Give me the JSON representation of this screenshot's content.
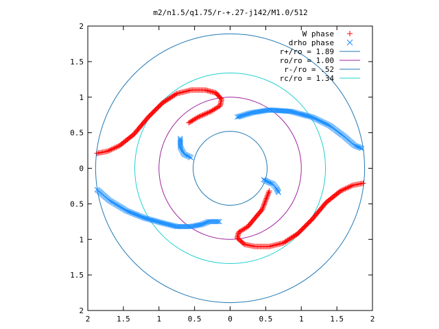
{
  "chart_data": {
    "type": "scatter",
    "title": "m2/n1.5/q1.75/r-+.27-j142/M1.0/512",
    "xlabel": "",
    "ylabel": "",
    "xlim": [
      -2,
      2
    ],
    "ylim": [
      -2,
      2
    ],
    "x_tick_labels": [
      "2",
      "1.5",
      "1",
      "0.5",
      "0",
      "0.5",
      "1",
      "1.5",
      "2"
    ],
    "y_tick_labels": [
      "2",
      "1.5",
      "1",
      "0.5",
      "0",
      "0.5",
      "1",
      "1.5",
      "2"
    ],
    "grid": false,
    "legend_position": "top-right",
    "colors": {
      "w_phase": "#ff0000",
      "drho_phase": "#1e90ff",
      "r_plus": "#1f77b4",
      "r_o": "#a020a0",
      "r_minus": "#1f77b4",
      "r_c": "#20d0d0"
    },
    "series": [
      {
        "name": "W phase",
        "marker": "plus",
        "color": "#ff0000",
        "branches": [
          {
            "x": [
              -1.87,
              -1.72,
              -1.55,
              -1.35,
              -1.15,
              -0.95,
              -0.75,
              -0.55,
              -0.35,
              -0.2,
              -0.12,
              -0.14,
              -0.27,
              -0.45,
              -0.58
            ],
            "y": [
              0.21,
              0.24,
              0.32,
              0.48,
              0.72,
              0.92,
              1.05,
              1.1,
              1.1,
              1.06,
              0.97,
              0.88,
              0.8,
              0.72,
              0.64
            ]
          },
          {
            "x": [
              1.87,
              1.72,
              1.55,
              1.35,
              1.15,
              0.95,
              0.75,
              0.55,
              0.35,
              0.2,
              0.1,
              0.12,
              0.25,
              0.45,
              0.55
            ],
            "y": [
              -0.21,
              -0.24,
              -0.32,
              -0.48,
              -0.72,
              -0.92,
              -1.05,
              -1.1,
              -1.1,
              -1.07,
              -0.98,
              -0.9,
              -0.82,
              -0.58,
              -0.32
            ]
          }
        ]
      },
      {
        "name": "drho phase",
        "marker": "cross",
        "color": "#1e90ff",
        "branches": [
          {
            "x": [
              -0.7,
              -0.7,
              -0.65,
              -0.55
            ],
            "y": [
              0.42,
              0.3,
              0.2,
              0.15
            ]
          },
          {
            "x": [
              0.1,
              0.3,
              0.55,
              0.85,
              1.15,
              1.4,
              1.6,
              1.75,
              1.85
            ],
            "y": [
              0.72,
              0.78,
              0.82,
              0.8,
              0.72,
              0.6,
              0.45,
              0.32,
              0.28
            ]
          },
          {
            "x": [
              -1.87,
              -1.7,
              -1.45,
              -1.2,
              -0.95,
              -0.75,
              -0.55,
              -0.4,
              -0.3,
              -0.15
            ],
            "y": [
              -0.3,
              -0.45,
              -0.6,
              -0.7,
              -0.77,
              -0.82,
              -0.82,
              -0.79,
              -0.75,
              -0.75
            ]
          },
          {
            "x": [
              0.47,
              0.55,
              0.6,
              0.65,
              0.68
            ],
            "y": [
              -0.16,
              -0.2,
              -0.22,
              -0.28,
              -0.34
            ]
          }
        ]
      },
      {
        "name": "r+/ro = 1.89",
        "type": "circle",
        "radius": 1.89,
        "color": "#1f77b4"
      },
      {
        "name": "ro/ro = 1.00",
        "type": "circle",
        "radius": 1.0,
        "color": "#a020a0"
      },
      {
        "name": "r-/ro = .52",
        "type": "circle",
        "radius": 0.52,
        "color": "#1f77b4"
      },
      {
        "name": "rc/ro = 1.34",
        "type": "circle",
        "radius": 1.34,
        "color": "#20d0d0"
      }
    ]
  }
}
